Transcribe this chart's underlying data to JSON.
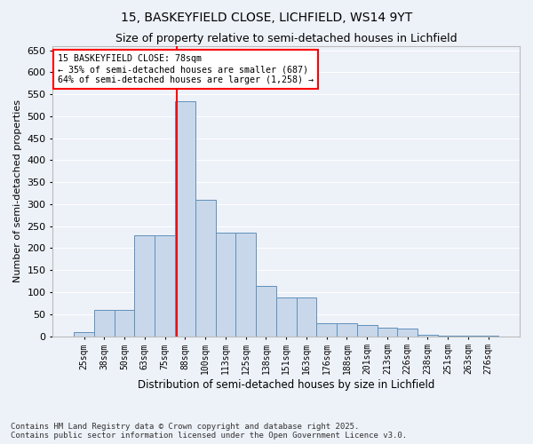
{
  "title_line1": "15, BASKEYFIELD CLOSE, LICHFIELD, WS14 9YT",
  "title_line2": "Size of property relative to semi-detached houses in Lichfield",
  "xlabel": "Distribution of semi-detached houses by size in Lichfield",
  "ylabel": "Number of semi-detached properties",
  "footnote": "Contains HM Land Registry data © Crown copyright and database right 2025.\nContains public sector information licensed under the Open Government Licence v3.0.",
  "categories": [
    "25sqm",
    "38sqm",
    "50sqm",
    "63sqm",
    "75sqm",
    "88sqm",
    "100sqm",
    "113sqm",
    "125sqm",
    "138sqm",
    "151sqm",
    "163sqm",
    "176sqm",
    "188sqm",
    "201sqm",
    "213sqm",
    "226sqm",
    "238sqm",
    "251sqm",
    "263sqm",
    "276sqm"
  ],
  "values": [
    10,
    60,
    60,
    230,
    230,
    535,
    310,
    235,
    235,
    115,
    88,
    88,
    30,
    30,
    25,
    20,
    17,
    4,
    2,
    2,
    1
  ],
  "bar_color": "#c8d8ea",
  "bar_edge_color": "#6090bb",
  "vline_color": "red",
  "vline_position": 4.6,
  "annotation_title": "15 BASKEYFIELD CLOSE: 78sqm",
  "annotation_line2": "← 35% of semi-detached houses are smaller (687)",
  "annotation_line3": "64% of semi-detached houses are larger (1,258) →",
  "annotation_box_color": "red",
  "annotation_bg": "white",
  "ylim": [
    0,
    660
  ],
  "yticks": [
    0,
    50,
    100,
    150,
    200,
    250,
    300,
    350,
    400,
    450,
    500,
    550,
    600,
    650
  ],
  "bg_color": "#edf1f8",
  "plot_bg_color": "#edf1f8",
  "grid_color": "#ffffff",
  "title1_fontsize": 10,
  "title2_fontsize": 9,
  "xlabel_fontsize": 8.5,
  "ylabel_fontsize": 8,
  "xtick_fontsize": 7,
  "ytick_fontsize": 8,
  "footnote_fontsize": 6.5
}
